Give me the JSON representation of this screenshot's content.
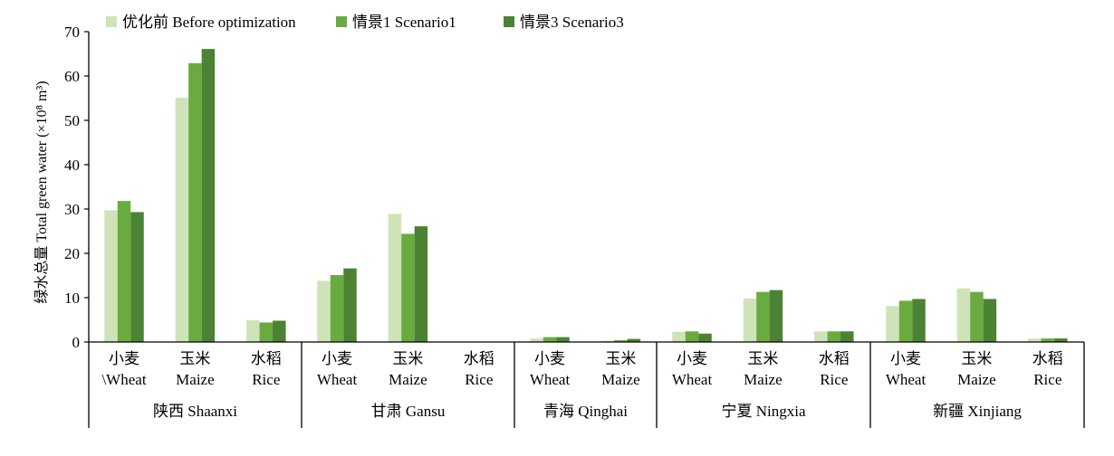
{
  "chart_data": {
    "type": "bar",
    "ylabel": "绿水总量 Total green water (×10⁸ m³)",
    "ylim": [
      0,
      70
    ],
    "yticks": [
      0,
      10,
      20,
      30,
      40,
      50,
      60,
      70
    ],
    "grid": false,
    "legend_position": "top",
    "series": [
      {
        "name": "优化前 Before optimization",
        "color": "#cfe3b8"
      },
      {
        "name": "情景1 Scenario1",
        "color": "#6aab40"
      },
      {
        "name": "情景3 Scenario3",
        "color": "#4b8233"
      }
    ],
    "groups": [
      {
        "label": "陕西 Shaanxi",
        "categories": [
          {
            "cn": "小麦",
            "en": "\\Wheat",
            "values": [
              29.7,
              31.8,
              29.3
            ]
          },
          {
            "cn": "玉米",
            "en": "Maize",
            "values": [
              55.1,
              62.9,
              66.1
            ]
          },
          {
            "cn": "水稻",
            "en": "Rice",
            "values": [
              4.9,
              4.4,
              4.8
            ]
          }
        ]
      },
      {
        "label": "甘肃 Gansu",
        "categories": [
          {
            "cn": "小麦",
            "en": "Wheat",
            "values": [
              13.8,
              15.1,
              16.6
            ]
          },
          {
            "cn": "玉米",
            "en": "Maize",
            "values": [
              28.9,
              24.4,
              26.1
            ]
          },
          {
            "cn": "水稻",
            "en": "Rice",
            "values": [
              0,
              0,
              0
            ]
          }
        ]
      },
      {
        "label": "青海 Qinghai",
        "categories": [
          {
            "cn": "小麦",
            "en": "Wheat",
            "values": [
              0.8,
              1.1,
              1.1
            ]
          },
          {
            "cn": "玉米",
            "en": "Maize",
            "values": [
              0.3,
              0.4,
              0.7
            ]
          }
        ]
      },
      {
        "label": "宁夏 Ningxia",
        "categories": [
          {
            "cn": "小麦",
            "en": "Wheat",
            "values": [
              2.3,
              2.4,
              1.9
            ]
          },
          {
            "cn": "玉米",
            "en": "Maize",
            "values": [
              9.8,
              11.3,
              11.7
            ]
          },
          {
            "cn": "水稻",
            "en": "Rice",
            "values": [
              2.4,
              2.4,
              2.4
            ]
          }
        ]
      },
      {
        "label": "新疆 Xinjiang",
        "categories": [
          {
            "cn": "小麦",
            "en": "Wheat",
            "values": [
              8.1,
              9.3,
              9.7
            ]
          },
          {
            "cn": "玉米",
            "en": "Maize",
            "values": [
              12.1,
              11.3,
              9.7
            ]
          },
          {
            "cn": "水稻",
            "en": "Rice",
            "values": [
              0.8,
              0.8,
              0.8
            ]
          }
        ]
      }
    ]
  }
}
